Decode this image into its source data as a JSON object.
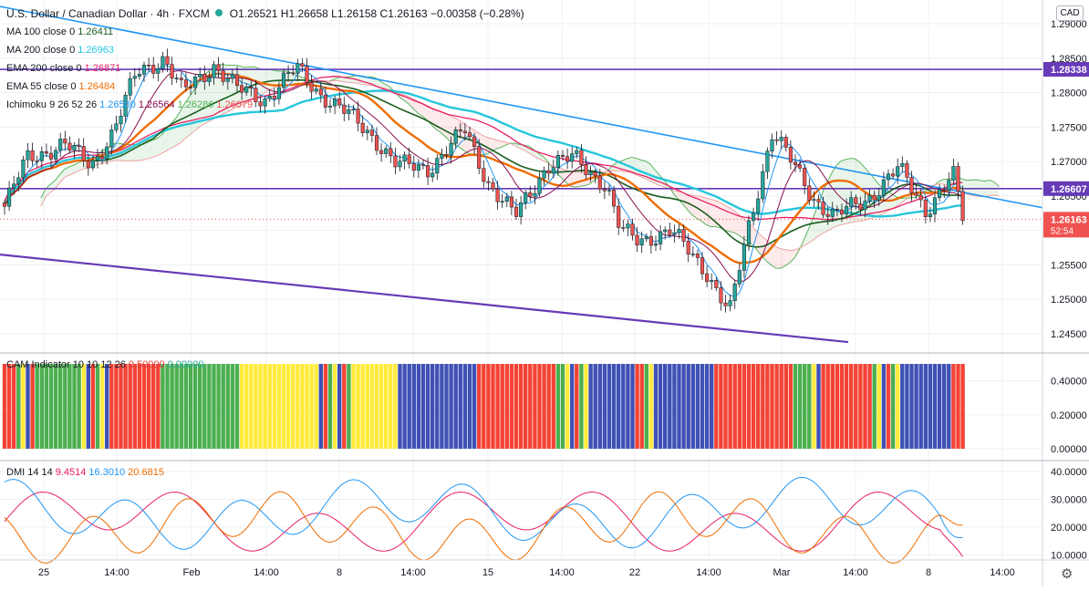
{
  "header": {
    "symbol": "U.S. Dollar / Canadian Dollar · 4h · FXCM",
    "ohlc": "O1.26521 H1.26658 L1.26158 C1.26163 −0.00358 (−0.28%)",
    "currency": "CAD"
  },
  "legend": [
    {
      "label": "MA 100 close 0",
      "value": "1.26411",
      "color": "#1b5e20"
    },
    {
      "label": "MA 200 close 0",
      "value": "1.26963",
      "color": "#26c6da"
    },
    {
      "label": "EMA 200 close 0",
      "value": "1.26871",
      "color": "#e91e63"
    },
    {
      "label": "EMA 55 close 0",
      "value": "1.26484",
      "color": "#ef6c00"
    },
    {
      "label": "Ichimoku 9 26 52 26",
      "values": [
        "1.26580",
        "1.26564",
        "1.26286",
        "1.26079"
      ],
      "colors": [
        "#2196f3",
        "#880e4f",
        "#4caf50",
        "#ef5350"
      ]
    }
  ],
  "cam_legend": {
    "label": "CAM Indicator 10 10 12 26",
    "values": [
      "0.50000",
      "0.00000"
    ],
    "colors": [
      "#e53935",
      "#26a69a"
    ]
  },
  "dmi_legend": {
    "label": "DMI 14 14",
    "values": [
      "9.4514",
      "16.3010",
      "20.6815"
    ],
    "colors": [
      "#e91e63",
      "#2196f3",
      "#ef6c00"
    ]
  },
  "price_axis": {
    "ticks": [
      "1.29000",
      "1.28500",
      "1.28000",
      "1.27500",
      "1.27000",
      "1.26500",
      "1.26000",
      "1.25500",
      "1.25000",
      "1.24500"
    ],
    "badges": [
      {
        "text": "1.28338",
        "color": "#673ab7"
      },
      {
        "text": "1.26607",
        "color": "#673ab7"
      },
      {
        "text": "1.26163",
        "sub": "52:54",
        "color": "#ef5350"
      }
    ]
  },
  "cam_axis": {
    "ticks": [
      "0.40000",
      "0.20000",
      "0.00000"
    ]
  },
  "dmi_axis": {
    "ticks": [
      "40.0000",
      "30.0000",
      "20.0000",
      "10.0000"
    ]
  },
  "time_axis": {
    "labels": [
      "25",
      "14:00",
      "Feb",
      "14:00",
      "8",
      "14:00",
      "15",
      "14:00",
      "22",
      "14:00",
      "Mar",
      "14:00",
      "8",
      "14:00"
    ]
  },
  "colors": {
    "purple": "#673ab7",
    "trend": "#2196f3",
    "up": "#26a69a",
    "down": "#ef5350"
  },
  "chart_data": [
    {
      "type": "candlestick",
      "title": "U.S. Dollar / Canadian Dollar · 4h · FXCM",
      "ylim": [
        1.242,
        1.2925
      ],
      "last_close": 1.26163,
      "horizontal_levels": [
        1.28338,
        1.26607
      ],
      "series": [
        {
          "name": "MA 100 close 0",
          "last": 1.26411
        },
        {
          "name": "MA 200 close 0",
          "last": 1.26963
        },
        {
          "name": "EMA 200 close 0",
          "last": 1.26871
        },
        {
          "name": "EMA 55 close 0",
          "last": 1.26484
        }
      ]
    },
    {
      "type": "bar",
      "title": "CAM Indicator 10 10 12 26",
      "ylim": [
        0,
        0.5
      ],
      "note": "colored histogram bars, value 0.5 each"
    },
    {
      "type": "line",
      "title": "DMI 14 14",
      "ylim": [
        5,
        42
      ],
      "series": [
        {
          "name": "DMI 14 14",
          "last": 9.4514
        },
        {
          "name": "DMI 14 14",
          "last": 16.301
        },
        {
          "name": "DMI 14 14",
          "last": 20.6815
        }
      ]
    }
  ]
}
